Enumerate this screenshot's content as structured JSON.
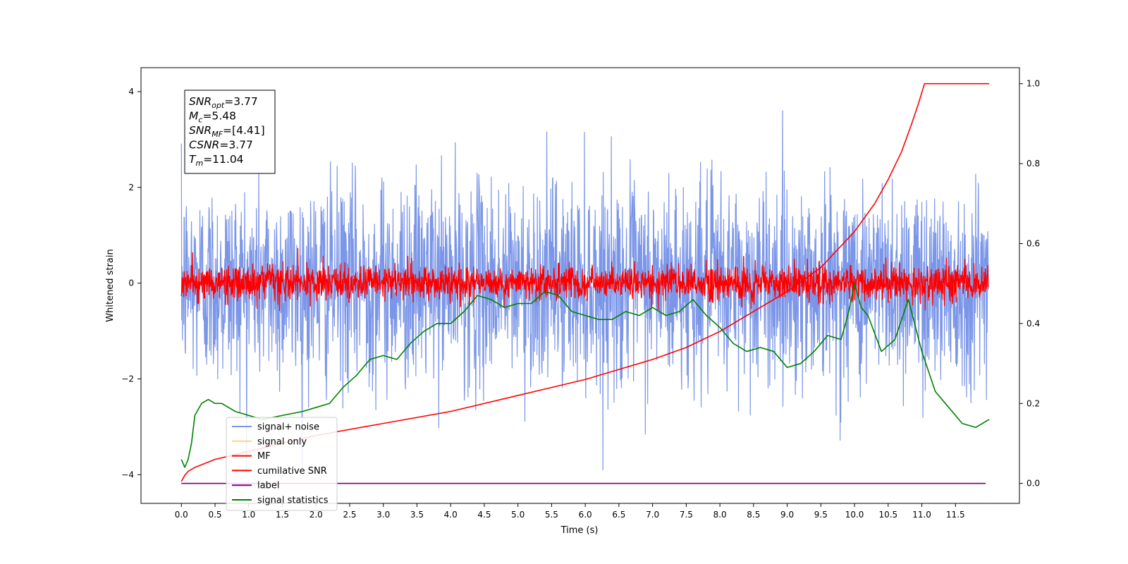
{
  "chart_data": {
    "type": "line",
    "xlabel": "Time (s)",
    "ylabel": "Whitened strain",
    "xlim": [
      -0.6,
      12.45
    ],
    "ylim": [
      -4.6,
      4.5
    ],
    "ylim_right": [
      -0.05,
      1.04
    ],
    "x_ticks": [
      "0.0",
      "0.5",
      "1.0",
      "1.5",
      "2.0",
      "2.5",
      "3.0",
      "3.5",
      "4.0",
      "4.5",
      "5.0",
      "5.5",
      "6.0",
      "6.5",
      "7.0",
      "7.5",
      "8.0",
      "8.5",
      "9.0",
      "9.5",
      "10.0",
      "10.5",
      "11.0",
      "11.5"
    ],
    "y_ticks": [
      "4",
      "2",
      "0",
      "−2",
      "−4"
    ],
    "y_ticks_right": [
      "1.0",
      "0.8",
      "0.6",
      "0.4",
      "0.2",
      "0.0"
    ],
    "annotation": {
      "lines": [
        {
          "sym": "SNR",
          "sub": "opt",
          "val": "=3.77"
        },
        {
          "sym": "M",
          "sub": "c",
          "val": "=5.48"
        },
        {
          "sym": "SNR",
          "sub": "MF",
          "val": "=[4.41]"
        },
        {
          "sym": "CSNR",
          "sub": "",
          "val": "=3.77"
        },
        {
          "sym": "T",
          "sub": "m",
          "val": "=11.04"
        }
      ]
    },
    "legend": {
      "position": "lower-left",
      "entries": [
        {
          "label": "signal+ noise",
          "color": "#7b96e8"
        },
        {
          "label": "signal only",
          "color": "#ffd27f"
        },
        {
          "label": "MF",
          "color": "#ff0000"
        },
        {
          "label": "cumilative SNR",
          "color": "#ff0000"
        },
        {
          "label": "label",
          "color": "#800080"
        },
        {
          "label": "signal statistics",
          "color": "#008000"
        }
      ]
    },
    "series": [
      {
        "name": "signal+ noise",
        "axis": "left",
        "color": "#7b96e8",
        "kind": "noise",
        "x_range": [
          0.0,
          11.99
        ],
        "std": 1.0,
        "points": 2400
      },
      {
        "name": "MF",
        "axis": "left",
        "color": "#ff0000",
        "kind": "noise",
        "x_range": [
          0.0,
          11.99
        ],
        "std": 0.18,
        "points": 2400
      },
      {
        "name": "label",
        "axis": "right",
        "color": "#800080",
        "x": [
          0.0,
          11.95
        ],
        "values": [
          0.0,
          0.0
        ]
      },
      {
        "name": "cumilative SNR",
        "axis": "right",
        "color": "#ff0000",
        "x": [
          0.0,
          0.05,
          0.1,
          0.2,
          0.5,
          1.0,
          1.5,
          2.0,
          3.0,
          4.0,
          5.0,
          6.0,
          7.0,
          7.5,
          8.0,
          8.5,
          9.0,
          9.5,
          10.0,
          10.3,
          10.5,
          10.7,
          10.85,
          10.95,
          11.04,
          11.5,
          12.0
        ],
        "values": [
          0.005,
          0.02,
          0.03,
          0.04,
          0.06,
          0.08,
          0.1,
          0.12,
          0.15,
          0.18,
          0.22,
          0.26,
          0.31,
          0.34,
          0.38,
          0.43,
          0.48,
          0.54,
          0.63,
          0.7,
          0.76,
          0.83,
          0.9,
          0.95,
          1.0,
          1.0,
          1.0
        ]
      },
      {
        "name": "signal statistics",
        "axis": "right",
        "color": "#008000",
        "x": [
          0.0,
          0.05,
          0.1,
          0.15,
          0.2,
          0.3,
          0.4,
          0.5,
          0.6,
          0.8,
          1.0,
          1.2,
          1.5,
          1.8,
          2.0,
          2.2,
          2.4,
          2.6,
          2.8,
          3.0,
          3.2,
          3.4,
          3.6,
          3.8,
          4.0,
          4.2,
          4.4,
          4.6,
          4.8,
          5.0,
          5.2,
          5.4,
          5.6,
          5.8,
          6.0,
          6.2,
          6.4,
          6.6,
          6.8,
          7.0,
          7.2,
          7.4,
          7.6,
          7.8,
          8.0,
          8.2,
          8.4,
          8.6,
          8.8,
          9.0,
          9.2,
          9.4,
          9.6,
          9.8,
          9.9,
          10.0,
          10.1,
          10.2,
          10.4,
          10.6,
          10.8,
          11.0,
          11.2,
          11.4,
          11.6,
          11.8,
          12.0
        ],
        "values": [
          0.06,
          0.04,
          0.06,
          0.1,
          0.17,
          0.2,
          0.21,
          0.2,
          0.2,
          0.18,
          0.17,
          0.16,
          0.17,
          0.18,
          0.19,
          0.2,
          0.24,
          0.27,
          0.31,
          0.32,
          0.31,
          0.35,
          0.38,
          0.4,
          0.4,
          0.43,
          0.47,
          0.46,
          0.44,
          0.45,
          0.45,
          0.48,
          0.47,
          0.43,
          0.42,
          0.41,
          0.41,
          0.43,
          0.42,
          0.44,
          0.42,
          0.43,
          0.46,
          0.42,
          0.39,
          0.35,
          0.33,
          0.34,
          0.33,
          0.29,
          0.3,
          0.33,
          0.37,
          0.36,
          0.42,
          0.5,
          0.44,
          0.42,
          0.33,
          0.36,
          0.46,
          0.33,
          0.23,
          0.19,
          0.15,
          0.14,
          0.16
        ]
      }
    ]
  }
}
